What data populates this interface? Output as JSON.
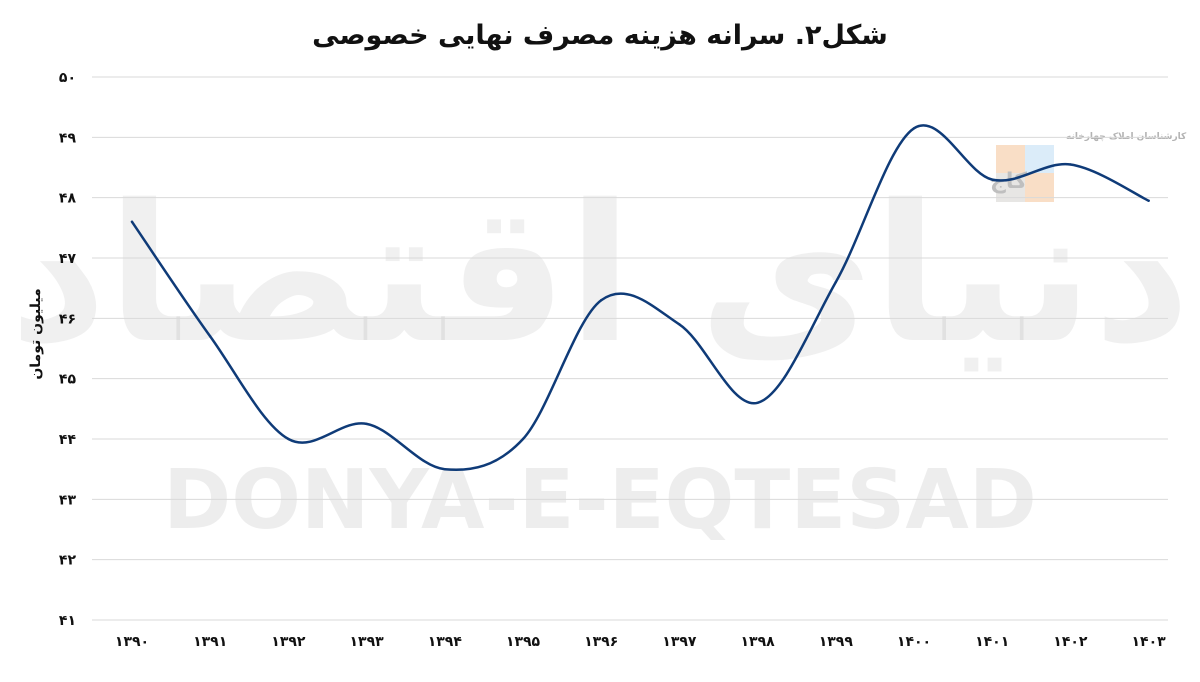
{
  "chart_data": {
    "type": "line",
    "title": "شکل۲. سرانه هزینه مصرف نهایی خصوصی",
    "ylabel": "میلیون تومان",
    "xlabel": "",
    "ylim": [
      41,
      50
    ],
    "yticks": [
      "۴۱",
      "۴۲",
      "۴۳",
      "۴۴",
      "۴۵",
      "۴۶",
      "۴۷",
      "۴۸",
      "۴۹",
      "۵۰"
    ],
    "categories": [
      "۱۳۹۰",
      "۱۳۹۱",
      "۱۳۹۲",
      "۱۳۹۳",
      "۱۳۹۴",
      "۱۳۹۵",
      "۱۳۹۶",
      "۱۳۹۷",
      "۱۳۹۸",
      "۱۳۹۹",
      "۱۴۰۰",
      "۱۴۰۱",
      "۱۴۰۲",
      "۱۴۰۳"
    ],
    "series": [
      {
        "values": [
          47.6,
          45.7,
          44.0,
          44.25,
          43.5,
          44.0,
          46.3,
          45.9,
          44.6,
          46.6,
          49.15,
          48.3,
          48.55,
          47.95
        ],
        "color": "#0f3b78"
      }
    ],
    "grid": true,
    "legend": "none"
  },
  "watermarks": {
    "main_text": "DONYA-E-EQTESAD",
    "script_text": "دنیای اقتصاد",
    "corner_text": "کارشناسان املاک چهارخانه",
    "corner_logo_text": "کاج"
  }
}
